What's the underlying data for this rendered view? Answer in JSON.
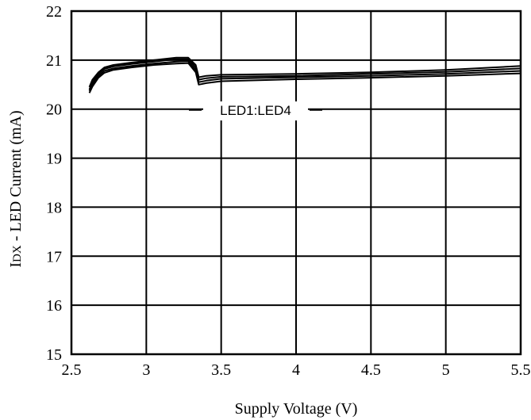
{
  "chart_data": {
    "type": "line",
    "title": "",
    "xlabel": "Supply Voltage (V)",
    "ylabel_main": "I",
    "ylabel_sub": "DX",
    "ylabel_rest": " - LED Current  (mA)",
    "xlim": [
      2.5,
      5.5
    ],
    "ylim": [
      15,
      22
    ],
    "xticks": [
      2.5,
      3,
      3.5,
      4,
      4.5,
      5,
      5.5
    ],
    "xtick_labels": [
      "2.5",
      "3",
      "3.5",
      "4",
      "4.5",
      "5",
      "5.5"
    ],
    "yticks": [
      15,
      16,
      17,
      18,
      19,
      20,
      21,
      22
    ],
    "ytick_labels": [
      "15",
      "16",
      "17",
      "18",
      "19",
      "20",
      "21",
      "22"
    ],
    "grid": true,
    "legend": "none",
    "annotation": "LED1:LED4",
    "series": [
      {
        "x": [
          2.62,
          2.64,
          2.68,
          2.72,
          2.78,
          2.9,
          3.05,
          3.2,
          3.28,
          3.33,
          3.35,
          3.4,
          3.5,
          4.0,
          4.5,
          5.0,
          5.5
        ],
        "values": [
          20.45,
          20.6,
          20.75,
          20.85,
          20.9,
          20.95,
          21.0,
          21.05,
          21.05,
          20.9,
          20.65,
          20.68,
          20.7,
          20.72,
          20.75,
          20.8,
          20.88
        ]
      },
      {
        "x": [
          2.62,
          2.64,
          2.68,
          2.72,
          2.78,
          2.9,
          3.05,
          3.2,
          3.28,
          3.33,
          3.35,
          3.4,
          3.5,
          4.0,
          4.5,
          5.0,
          5.5
        ],
        "values": [
          20.4,
          20.55,
          20.72,
          20.82,
          20.87,
          20.92,
          20.97,
          21.02,
          21.02,
          20.85,
          20.6,
          20.63,
          20.66,
          20.68,
          20.72,
          20.76,
          20.83
        ]
      },
      {
        "x": [
          2.62,
          2.64,
          2.68,
          2.72,
          2.78,
          2.9,
          3.05,
          3.2,
          3.28,
          3.33,
          3.35,
          3.4,
          3.5,
          4.0,
          4.5,
          5.0,
          5.5
        ],
        "values": [
          20.37,
          20.5,
          20.68,
          20.78,
          20.83,
          20.88,
          20.93,
          20.97,
          20.98,
          20.8,
          20.55,
          20.58,
          20.62,
          20.65,
          20.68,
          20.72,
          20.78
        ]
      },
      {
        "x": [
          2.62,
          2.64,
          2.68,
          2.72,
          2.78,
          2.9,
          3.05,
          3.2,
          3.28,
          3.33,
          3.35,
          3.4,
          3.5,
          4.0,
          4.5,
          5.0,
          5.5
        ],
        "values": [
          20.33,
          20.46,
          20.64,
          20.74,
          20.8,
          20.85,
          20.9,
          20.93,
          20.94,
          20.75,
          20.5,
          20.53,
          20.57,
          20.61,
          20.64,
          20.68,
          20.73
        ]
      }
    ]
  }
}
